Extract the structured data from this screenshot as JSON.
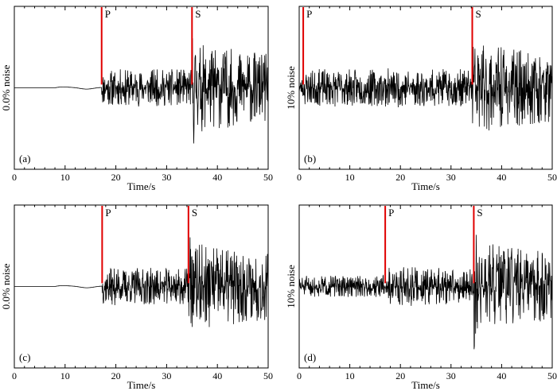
{
  "chart_data": [
    {
      "type": "line",
      "panel": "(a)",
      "ylabel": "0.0% noise",
      "xlabel": "Time/s",
      "xlim": [
        0,
        50
      ],
      "xticks": [
        0,
        10,
        20,
        30,
        40,
        50
      ],
      "ylim": [
        -1,
        1
      ],
      "grid": false,
      "seed": 11,
      "noise_level": 0,
      "picks": [
        {
          "label": "P",
          "time": 17.2
        },
        {
          "label": "S",
          "time": 35.0
        }
      ]
    },
    {
      "type": "line",
      "panel": "(b)",
      "ylabel": "10% noise",
      "xlabel": "Time/s",
      "xlim": [
        0,
        50
      ],
      "xticks": [
        0,
        10,
        20,
        30,
        40,
        50
      ],
      "ylim": [
        -1,
        1
      ],
      "grid": false,
      "seed": 23,
      "noise_level": 0.1,
      "picks": [
        {
          "label": "P",
          "time": 0.8
        },
        {
          "label": "S",
          "time": 34.2
        }
      ]
    },
    {
      "type": "line",
      "panel": "(c)",
      "ylabel": "0.0% noise",
      "xlabel": "Time/s",
      "xlim": [
        0,
        50
      ],
      "xticks": [
        0,
        10,
        20,
        30,
        40,
        50
      ],
      "ylim": [
        -1,
        1
      ],
      "grid": false,
      "seed": 37,
      "noise_level": 0,
      "picks": [
        {
          "label": "P",
          "time": 17.3
        },
        {
          "label": "S",
          "time": 34.3
        }
      ]
    },
    {
      "type": "line",
      "panel": "(d)",
      "ylabel": "10% noise",
      "xlabel": "Time/s",
      "xlim": [
        0,
        50
      ],
      "xticks": [
        0,
        10,
        20,
        30,
        40,
        50
      ],
      "ylim": [
        -1,
        1
      ],
      "grid": false,
      "seed": 51,
      "noise_level": 0.1,
      "picks": [
        {
          "label": "P",
          "time": 17.0
        },
        {
          "label": "S",
          "time": 34.5
        }
      ]
    }
  ]
}
